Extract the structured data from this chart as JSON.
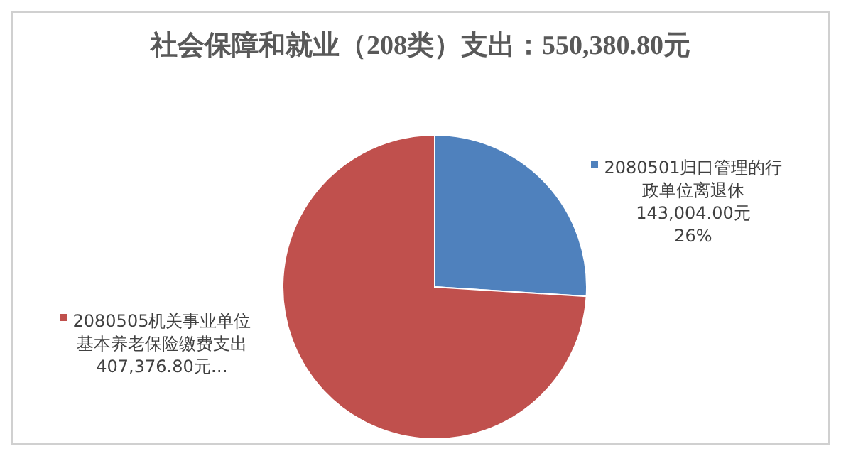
{
  "chart_data": {
    "type": "pie",
    "title": "社会保障和就业（208类）支出：550,380.80元",
    "categories": [
      "2080501归口管理的行政单位离退休",
      "2080505机关事业单位基本养老保险缴费支出"
    ],
    "values": [
      143004.0,
      407376.8
    ],
    "colors": [
      "#4f81bd",
      "#c0504d"
    ],
    "legend": "top left",
    "value_labels": [
      "143,004.00元\n26%",
      "407,376.80元…"
    ]
  }
}
